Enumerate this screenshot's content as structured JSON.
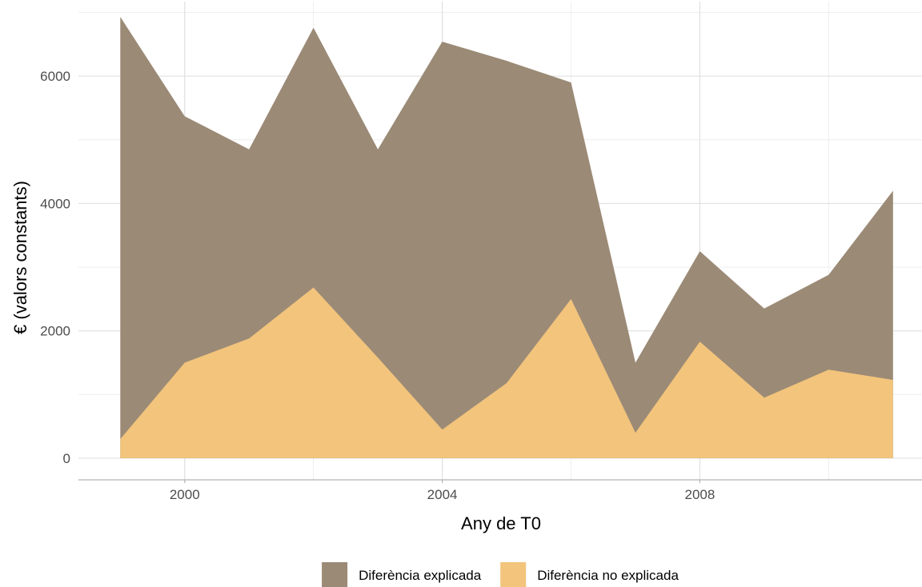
{
  "chart_data": {
    "type": "area",
    "title": "",
    "xlabel": "Any de T0",
    "ylabel": "€ (valors constants)",
    "x": [
      1999,
      2000,
      2001,
      2002,
      2003,
      2004,
      2005,
      2006,
      2007,
      2008,
      2009,
      2010,
      2011
    ],
    "xlim": [
      1998.35,
      2011.45
    ],
    "ylim": [
      -340,
      7170
    ],
    "x_ticks": [
      2000,
      2004,
      2008
    ],
    "x_tick_labels": [
      "2000",
      "2004",
      "2008"
    ],
    "y_ticks": [
      0,
      2000,
      4000,
      6000
    ],
    "y_tick_labels": [
      "0",
      "2000",
      "4000",
      "6000"
    ],
    "stacked": false,
    "grid": true,
    "legend_position": "bottom",
    "series": [
      {
        "name": "Diferència explicada",
        "color": "#9b8a76",
        "values": [
          6930,
          5370,
          4850,
          6760,
          4850,
          6540,
          6240,
          5900,
          1500,
          3250,
          2350,
          2880,
          4200
        ]
      },
      {
        "name": "Diferència no explicada",
        "color": "#f2c47c",
        "values": [
          300,
          1500,
          1880,
          2680,
          1580,
          450,
          1180,
          2500,
          400,
          1830,
          950,
          1390,
          1230
        ]
      }
    ]
  }
}
